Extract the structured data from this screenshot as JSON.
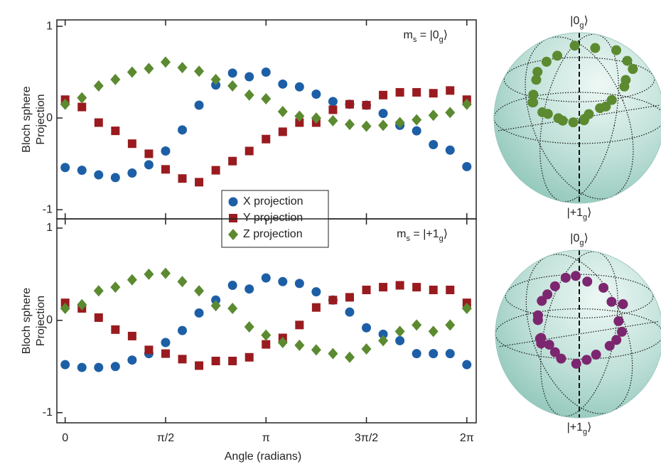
{
  "chart_data": [
    {
      "type": "scatter",
      "ylabel": [
        "Bloch sphere",
        "Projection"
      ],
      "annotation_parts": [
        "m",
        "s",
        " = |0",
        "g",
        "⟩"
      ],
      "x": [
        0,
        0.2618,
        0.5236,
        0.7854,
        1.0472,
        1.309,
        1.5708,
        1.8326,
        2.0944,
        2.3562,
        2.618,
        2.8798,
        3.1416,
        3.4034,
        3.6652,
        3.927,
        4.1888,
        4.4506,
        4.7124,
        4.9742,
        5.236,
        5.4978,
        5.7596,
        6.0214,
        6.2832
      ],
      "series": [
        {
          "name": "X projection",
          "color": "#1d5fa6",
          "marker": "circle",
          "values": [
            -0.54,
            -0.57,
            -0.62,
            -0.65,
            -0.6,
            -0.51,
            -0.36,
            -0.13,
            0.14,
            0.36,
            0.49,
            0.45,
            0.5,
            0.37,
            0.34,
            0.26,
            0.18,
            0.15,
            0.14,
            0.05,
            -0.08,
            -0.14,
            -0.29,
            -0.35,
            -0.53
          ]
        },
        {
          "name": "Y projection",
          "color": "#9a1b1f",
          "marker": "square",
          "values": [
            0.2,
            0.12,
            -0.05,
            -0.14,
            -0.28,
            -0.39,
            -0.56,
            -0.66,
            -0.7,
            -0.57,
            -0.47,
            -0.36,
            -0.23,
            -0.15,
            -0.05,
            -0.05,
            0.09,
            0.15,
            0.14,
            0.25,
            0.28,
            0.28,
            0.27,
            0.3,
            0.2
          ]
        },
        {
          "name": "Z projection",
          "color": "#5b8a30",
          "marker": "diamond",
          "values": [
            0.15,
            0.22,
            0.35,
            0.42,
            0.5,
            0.54,
            0.61,
            0.55,
            0.51,
            0.42,
            0.35,
            0.25,
            0.21,
            0.07,
            0.02,
            0,
            -0.03,
            -0.07,
            -0.09,
            -0.08,
            -0.05,
            -0.02,
            0.03,
            0.06,
            0.15
          ]
        }
      ],
      "xlim": [
        -0.13,
        6.43
      ],
      "ylim": [
        -1.1,
        1.07
      ],
      "yticks": [
        1,
        0,
        -1
      ],
      "legend": "lower center",
      "sphere_color": "#5b8a30",
      "sphere_top_label": [
        "|0",
        "g",
        "⟩"
      ],
      "sphere_bottom_label": [
        "|+1",
        "g",
        "⟩"
      ]
    },
    {
      "type": "scatter",
      "ylabel": [
        "Bloch sphere",
        "Projection"
      ],
      "xlabel": "Angle (radians)",
      "annotation_parts": [
        "m",
        "s",
        " = |+1",
        "g",
        "⟩"
      ],
      "x": [
        0,
        0.2618,
        0.5236,
        0.7854,
        1.0472,
        1.309,
        1.5708,
        1.8326,
        2.0944,
        2.3562,
        2.618,
        2.8798,
        3.1416,
        3.4034,
        3.6652,
        3.927,
        4.1888,
        4.4506,
        4.7124,
        4.9742,
        5.236,
        5.4978,
        5.7596,
        6.0214,
        6.2832
      ],
      "series": [
        {
          "color": "#1d5fa6",
          "marker": "circle",
          "values": [
            -0.48,
            -0.51,
            -0.51,
            -0.5,
            -0.43,
            -0.36,
            -0.24,
            -0.11,
            0.08,
            0.22,
            0.38,
            0.34,
            0.46,
            0.42,
            0.4,
            0.31,
            0.22,
            0.09,
            -0.08,
            -0.15,
            -0.22,
            -0.36,
            -0.36,
            -0.36,
            -0.48
          ]
        },
        {
          "color": "#9a1b1f",
          "marker": "square",
          "values": [
            0.19,
            0.13,
            0.03,
            -0.1,
            -0.17,
            -0.32,
            -0.36,
            -0.42,
            -0.49,
            -0.44,
            -0.44,
            -0.4,
            -0.26,
            -0.19,
            -0.05,
            0.14,
            0.22,
            0.25,
            0.33,
            0.36,
            0.38,
            0.36,
            0.33,
            0.33,
            0.19
          ]
        },
        {
          "color": "#5b8a30",
          "marker": "diamond",
          "values": [
            0.13,
            0.17,
            0.32,
            0.36,
            0.44,
            0.5,
            0.51,
            0.42,
            0.32,
            0.16,
            0.13,
            -0.07,
            -0.16,
            -0.24,
            -0.27,
            -0.32,
            -0.36,
            -0.4,
            -0.31,
            -0.22,
            -0.12,
            -0.05,
            -0.12,
            -0.05,
            0.13
          ]
        }
      ],
      "xlim": [
        -0.13,
        6.43
      ],
      "ylim": [
        -1.11,
        1.1
      ],
      "yticks": [
        1,
        0,
        -1
      ],
      "xticks": [
        0,
        {
          "value": 1.5708,
          "label": "π/2"
        },
        {
          "value": 3.1416,
          "label": "π"
        },
        {
          "value": 4.7124,
          "label": "3π/2"
        },
        {
          "value": 6.2832,
          "label": "2π"
        }
      ],
      "sphere_color": "#7d2670",
      "sphere_top_label": [
        "|0",
        "g",
        "⟩"
      ],
      "sphere_bottom_label": [
        "|+1",
        "g",
        "⟩"
      ]
    }
  ]
}
